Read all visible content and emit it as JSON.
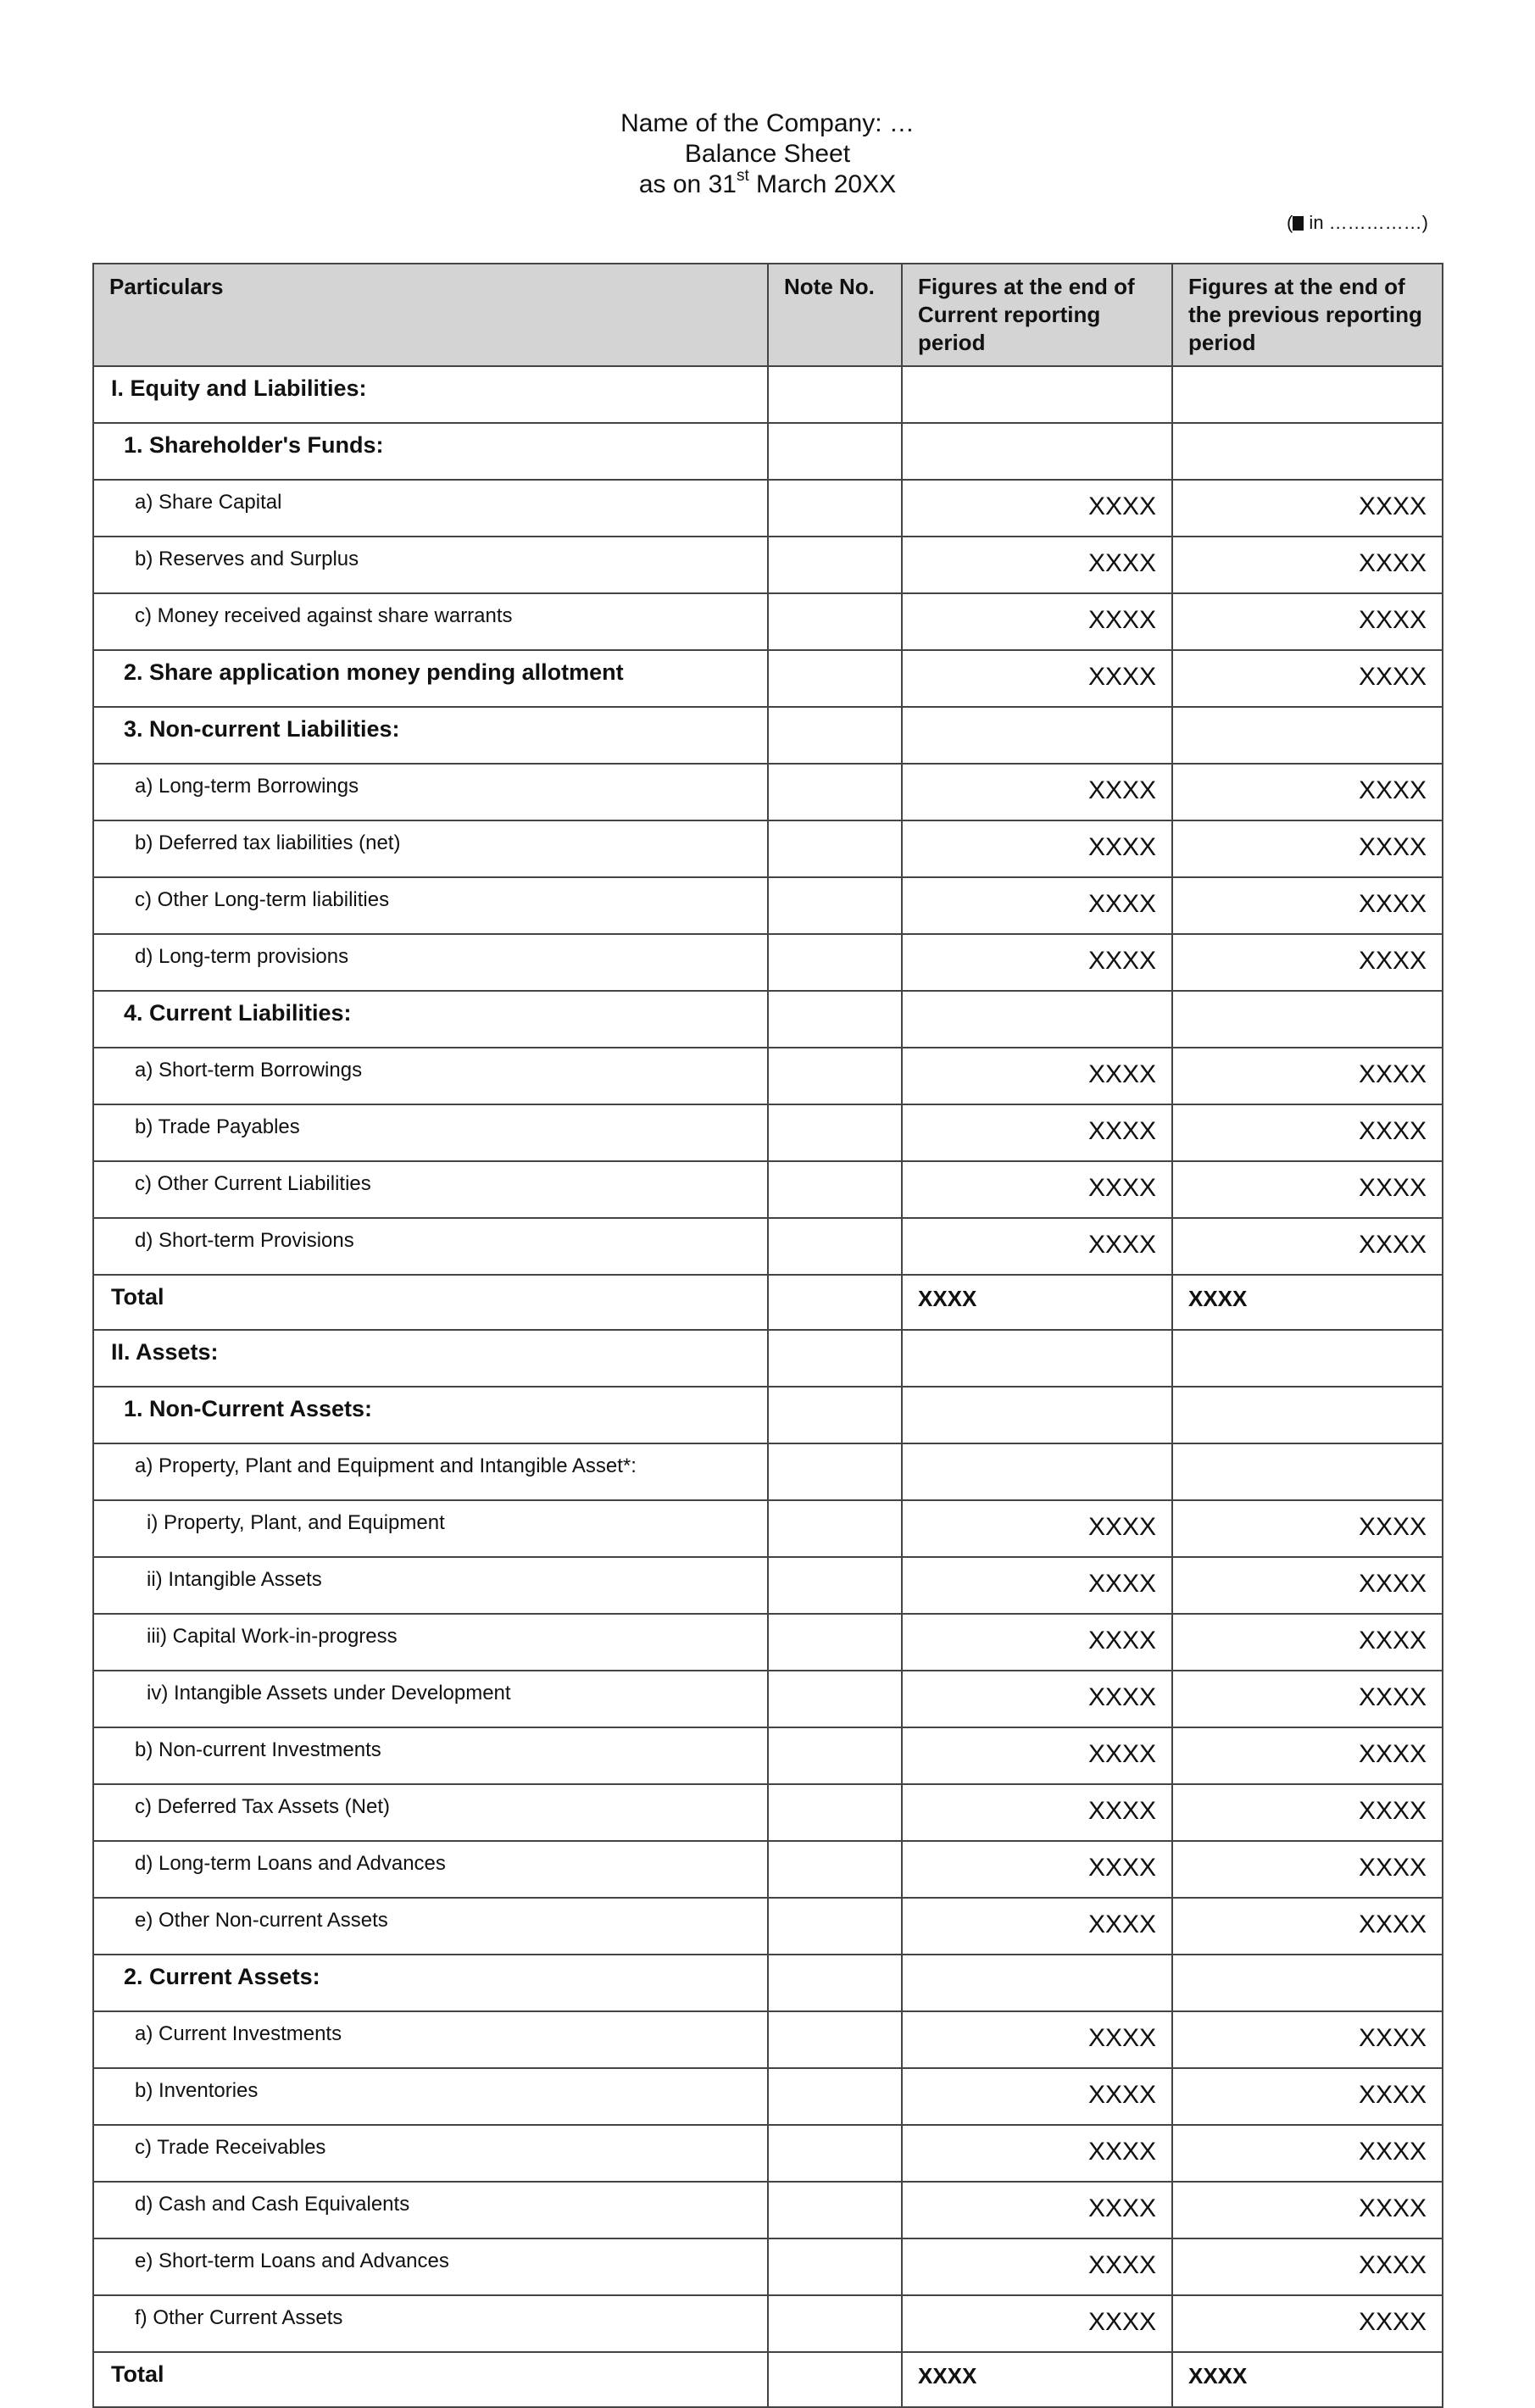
{
  "header": {
    "company": "Name of the Company: …",
    "title": "Balance Sheet",
    "date_prefix": "as on 31",
    "date_sup": "st",
    "date_suffix": " March 20XX",
    "unit_note_prefix": "(",
    "unit_note_icon": "rupee-symbol-box",
    "unit_note": " in ……………)"
  },
  "columns": [
    "Particulars",
    "Note No.",
    "Figures at the end of Current reporting period",
    "Figures at the end of the previous reporting period"
  ],
  "rows": [
    {
      "label": "I. Equity and Liabilities:",
      "level": 0,
      "bold": true,
      "current": "",
      "previous": ""
    },
    {
      "label": "1. Shareholder's Funds:",
      "level": 1,
      "bold": true,
      "current": "",
      "previous": ""
    },
    {
      "label": "a) Share Capital",
      "level": 2,
      "bold": false,
      "current": "XXXX",
      "previous": "XXXX"
    },
    {
      "label": "b) Reserves and Surplus",
      "level": 2,
      "bold": false,
      "current": "XXXX",
      "previous": "XXXX"
    },
    {
      "label": "c) Money received against share warrants",
      "level": 2,
      "bold": false,
      "current": "XXXX",
      "previous": "XXXX"
    },
    {
      "label": "2. Share application money pending allotment",
      "level": 1,
      "bold": true,
      "current": "XXXX",
      "previous": "XXXX"
    },
    {
      "label": "3. Non-current Liabilities:",
      "level": 1,
      "bold": true,
      "current": "",
      "previous": ""
    },
    {
      "label": "a) Long-term Borrowings",
      "level": 2,
      "bold": false,
      "current": "XXXX",
      "previous": "XXXX"
    },
    {
      "label": "b) Deferred tax liabilities (net)",
      "level": 2,
      "bold": false,
      "current": "XXXX",
      "previous": "XXXX"
    },
    {
      "label": "c) Other Long-term liabilities",
      "level": 2,
      "bold": false,
      "current": "XXXX",
      "previous": "XXXX"
    },
    {
      "label": "d) Long-term provisions",
      "level": 2,
      "bold": false,
      "current": "XXXX",
      "previous": "XXXX"
    },
    {
      "label": "4. Current Liabilities:",
      "level": 1,
      "bold": true,
      "current": "",
      "previous": ""
    },
    {
      "label": "a) Short-term Borrowings",
      "level": 2,
      "bold": false,
      "current": "XXXX",
      "previous": "XXXX"
    },
    {
      "label": "b) Trade Payables",
      "level": 2,
      "bold": false,
      "current": "XXXX",
      "previous": "XXXX"
    },
    {
      "label": "c) Other Current Liabilities",
      "level": 2,
      "bold": false,
      "current": "XXXX",
      "previous": "XXXX"
    },
    {
      "label": "d) Short-term Provisions",
      "level": 2,
      "bold": false,
      "current": "XXXX",
      "previous": "XXXX"
    },
    {
      "label": "Total",
      "level": 0,
      "bold": true,
      "total": true,
      "current": "XXXX",
      "previous": "XXXX"
    },
    {
      "label": "II. Assets:",
      "level": 0,
      "bold": true,
      "current": "",
      "previous": ""
    },
    {
      "label": "1. Non-Current Assets:",
      "level": 1,
      "bold": true,
      "current": "",
      "previous": ""
    },
    {
      "label": "a) Property, Plant and Equipment and Intangible Asset*:",
      "level": 2,
      "bold": false,
      "current": "",
      "previous": ""
    },
    {
      "label": "i) Property, Plant, and Equipment",
      "level": 3,
      "bold": false,
      "current": "XXXX",
      "previous": "XXXX"
    },
    {
      "label": "ii) Intangible Assets",
      "level": 3,
      "bold": false,
      "current": "XXXX",
      "previous": "XXXX"
    },
    {
      "label": "iii) Capital Work-in-progress",
      "level": 3,
      "bold": false,
      "current": "XXXX",
      "previous": "XXXX"
    },
    {
      "label": "iv) Intangible Assets under Development",
      "level": 3,
      "bold": false,
      "current": "XXXX",
      "previous": "XXXX"
    },
    {
      "label": "b) Non-current Investments",
      "level": 2,
      "bold": false,
      "current": "XXXX",
      "previous": "XXXX"
    },
    {
      "label": "c) Deferred Tax Assets (Net)",
      "level": 2,
      "bold": false,
      "current": "XXXX",
      "previous": "XXXX"
    },
    {
      "label": "d) Long-term Loans and Advances",
      "level": 2,
      "bold": false,
      "current": "XXXX",
      "previous": "XXXX"
    },
    {
      "label": "e) Other Non-current Assets",
      "level": 2,
      "bold": false,
      "current": "XXXX",
      "previous": "XXXX"
    },
    {
      "label": "2. Current Assets:",
      "level": 1,
      "bold": true,
      "current": "",
      "previous": ""
    },
    {
      "label": "a) Current Investments",
      "level": 2,
      "bold": false,
      "current": "XXXX",
      "previous": "XXXX"
    },
    {
      "label": "b) Inventories",
      "level": 2,
      "bold": false,
      "current": "XXXX",
      "previous": "XXXX"
    },
    {
      "label": "c) Trade Receivables",
      "level": 2,
      "bold": false,
      "current": "XXXX",
      "previous": "XXXX"
    },
    {
      "label": "d) Cash and Cash Equivalents",
      "level": 2,
      "bold": false,
      "current": "XXXX",
      "previous": "XXXX"
    },
    {
      "label": "e) Short-term Loans and Advances",
      "level": 2,
      "bold": false,
      "current": "XXXX",
      "previous": "XXXX"
    },
    {
      "label": "f) Other Current Assets",
      "level": 2,
      "bold": false,
      "current": "XXXX",
      "previous": "XXXX"
    },
    {
      "label": "Total",
      "level": 0,
      "bold": true,
      "total": true,
      "current": "XXXX",
      "previous": "XXXX"
    }
  ]
}
